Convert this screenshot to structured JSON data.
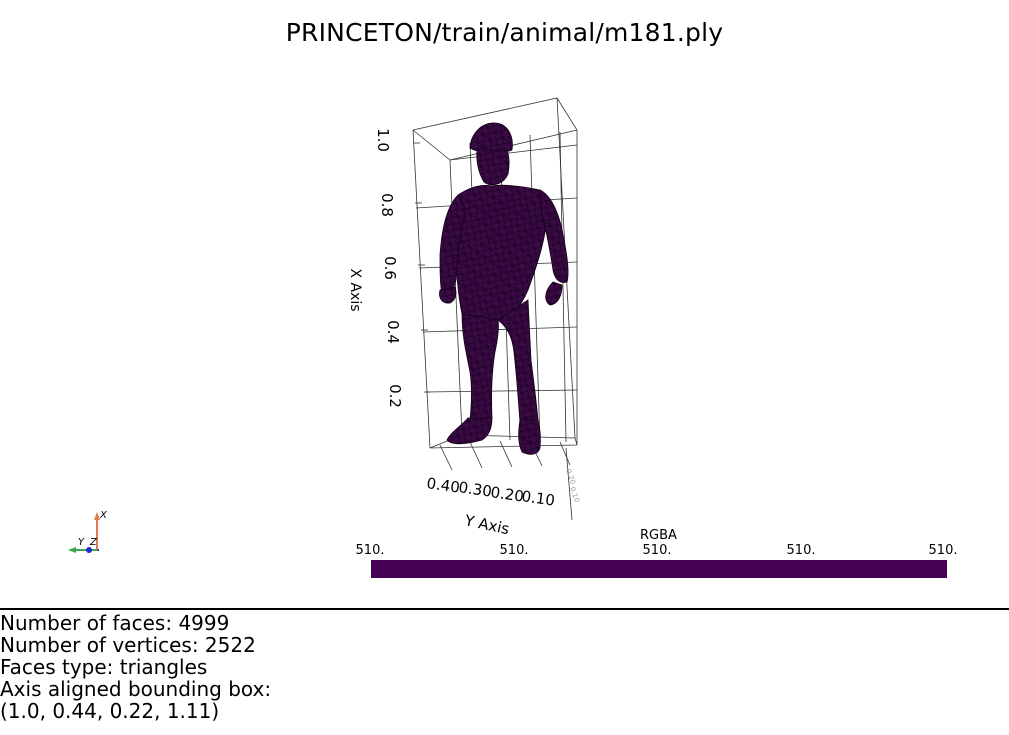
{
  "title": "PRINCETON/train/animal/m181.ply",
  "axes": {
    "x_axis_title": "X Axis",
    "y_axis_title": "Y Axis",
    "x_ticks": [
      "1.0",
      "0.8",
      "0.6",
      "0.4",
      "0.2"
    ],
    "y_ticks": [
      "0.40",
      "0.30",
      "0.20",
      "0.10"
    ]
  },
  "orientation_widget": {
    "x_label": "X",
    "y_label": "Y",
    "z_label": "Z",
    "colors": {
      "x": "#e07a55",
      "y": "#3aa84a",
      "z": "#1f2bd0"
    }
  },
  "colorbar": {
    "title": "RGBA",
    "ticks": [
      "510.",
      "510.",
      "510.",
      "510.",
      "510."
    ],
    "color": "#440154"
  },
  "mesh": {
    "color": "#3a0a45",
    "edge_color": "#14001a"
  },
  "info": {
    "faces_line": "Number of faces: 4999",
    "vertices_line": "Number of vertices: 2522",
    "faces_type_line": "Faces type: triangles",
    "bbox_label_line": "Axis aligned bounding box:",
    "bbox_value_line": "(1.0, 0.44, 0.22, 1.11)"
  }
}
